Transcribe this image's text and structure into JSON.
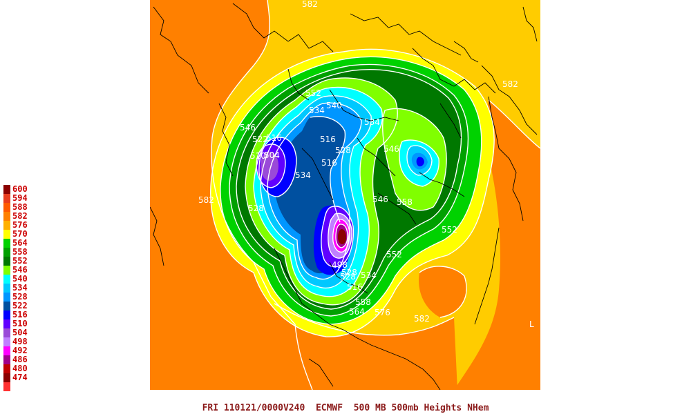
{
  "title": "FRI 110121/0000V240  ECMWF  500 MB 500mb Heights NHem",
  "legend": [
    {
      "label": "600",
      "color": "#8b0000"
    },
    {
      "label": "594",
      "color": "#e83c1e"
    },
    {
      "label": "588",
      "color": "#ff5a00"
    },
    {
      "label": "582",
      "color": "#ff8000"
    },
    {
      "label": "576",
      "color": "#ffb000"
    },
    {
      "label": "570",
      "color": "#ffff00"
    },
    {
      "label": "564",
      "color": "#00d200"
    },
    {
      "label": "558",
      "color": "#00a000"
    },
    {
      "label": "552",
      "color": "#007800"
    },
    {
      "label": "546",
      "color": "#80ff00"
    },
    {
      "label": "540",
      "color": "#00ffff"
    },
    {
      "label": "534",
      "color": "#00c8ff"
    },
    {
      "label": "528",
      "color": "#0096ff"
    },
    {
      "label": "522",
      "color": "#0050a0"
    },
    {
      "label": "516",
      "color": "#0000ff"
    },
    {
      "label": "510",
      "color": "#6000ff"
    },
    {
      "label": "504",
      "color": "#9a4ad8"
    },
    {
      "label": "498",
      "color": "#c080ff"
    },
    {
      "label": "492",
      "color": "#ff00ff"
    },
    {
      "label": "486",
      "color": "#a0008c"
    },
    {
      "label": "480",
      "color": "#c00000"
    },
    {
      "label": "474",
      "color": "#8b0000"
    },
    {
      "label": "",
      "color": "#ff3030"
    }
  ],
  "contour_labels": [
    "582",
    "582",
    "552",
    "540",
    "534",
    "516",
    "522",
    "510",
    "504",
    "516",
    "528",
    "534",
    "516",
    "528",
    "546",
    "534",
    "546",
    "558",
    "552",
    "582",
    "552",
    "528",
    "516",
    "534",
    "558",
    "564",
    "576",
    "582",
    "528",
    "546",
    "498"
  ]
}
